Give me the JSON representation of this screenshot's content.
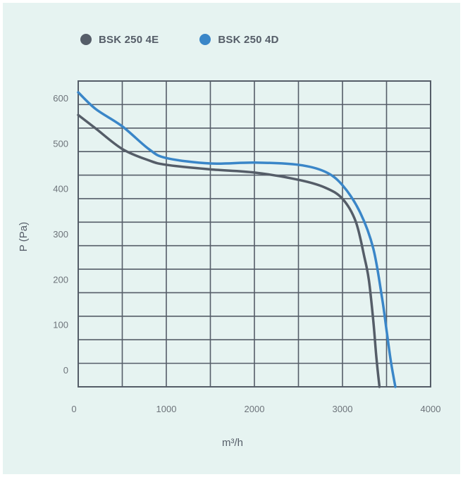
{
  "chart_data": {
    "type": "line",
    "xlabel": "m³/h",
    "ylabel": "P (Pa)",
    "xlim": [
      0,
      4000
    ],
    "ylim": [
      0,
      650
    ],
    "x_ticks": [
      0,
      1000,
      2000,
      3000,
      4000
    ],
    "y_ticks": [
      0,
      100,
      200,
      300,
      400,
      500,
      600
    ],
    "grid": true,
    "legend_position": "top-left",
    "series": [
      {
        "name": "BSK 250 4E",
        "color": "#555d68",
        "x": [
          0,
          200,
          500,
          800,
          1000,
          1500,
          2000,
          2500,
          2800,
          3000,
          3150,
          3250,
          3300,
          3350,
          3380,
          3400,
          3420
        ],
        "y": [
          575,
          545,
          500,
          475,
          465,
          455,
          448,
          432,
          415,
          390,
          340,
          260,
          210,
          120,
          50,
          10,
          -25
        ]
      },
      {
        "name": "BSK 250 4D",
        "color": "#3a86c8",
        "x": [
          0,
          200,
          500,
          800,
          1000,
          1500,
          2000,
          2500,
          2800,
          3000,
          3200,
          3350,
          3450,
          3500,
          3550,
          3600
        ],
        "y": [
          625,
          588,
          550,
          500,
          480,
          468,
          470,
          465,
          450,
          420,
          360,
          280,
          170,
          100,
          30,
          -25
        ]
      }
    ]
  }
}
